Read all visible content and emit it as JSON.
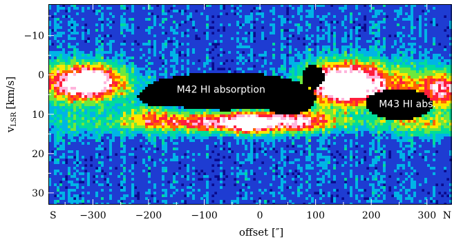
{
  "chart_data": {
    "type": "heatmap",
    "title": "",
    "xlabel": "offset [″]",
    "ylabel": "v",
    "ylabel_sub": "LSR",
    "ylabel_unit": "[km/s]",
    "xlim": [
      -380,
      345
    ],
    "ylim": [
      -18,
      33
    ],
    "y_inverted": true,
    "x_ticks": [
      -300,
      -200,
      -100,
      0,
      100,
      200,
      300
    ],
    "x_tick_labels": [
      "−300",
      "−200",
      "−100",
      "0",
      "100",
      "200",
      "300"
    ],
    "y_ticks": [
      -10,
      0,
      10,
      20,
      30
    ],
    "y_tick_labels": [
      "−10",
      "0",
      "10",
      "20",
      "30"
    ],
    "x_end_labels": {
      "left": "S",
      "right": "N"
    },
    "colormap": [
      "#0a0a8c",
      "#1e3cd2",
      "#00b4e6",
      "#00dc9a",
      "#6ee83c",
      "#ffe600",
      "#ff6400",
      "#ff1e3c",
      "#ffb4dc",
      "#ffffff"
    ],
    "background_color": "#0a0a8c",
    "emission_components": [
      {
        "x": -320,
        "v": 2,
        "sx": 55,
        "sv": 3.2,
        "amp": 0.9
      },
      {
        "x": -300,
        "v": 2,
        "sx": 18,
        "sv": 2.2,
        "amp": 0.4
      },
      {
        "x": -330,
        "v": 12,
        "sx": 60,
        "sv": 3.0,
        "amp": 0.12
      },
      {
        "x": -50,
        "v": 12,
        "sx": 120,
        "sv": 1.8,
        "amp": 0.75
      },
      {
        "x": -20,
        "v": 12.5,
        "sx": 20,
        "sv": 1.6,
        "amp": 0.35
      },
      {
        "x": -200,
        "v": 10,
        "sx": 25,
        "sv": 2.5,
        "amp": 0.25
      },
      {
        "x": 60,
        "v": 11.5,
        "sx": 50,
        "sv": 2.0,
        "amp": 0.3
      },
      {
        "x": 150,
        "v": 2,
        "sx": 45,
        "sv": 3.5,
        "amp": 0.95
      },
      {
        "x": 155,
        "v": 3.5,
        "sx": 15,
        "sv": 1.5,
        "amp": 0.45
      },
      {
        "x": 240,
        "v": 3,
        "sx": 90,
        "sv": 4,
        "amp": 0.4
      },
      {
        "x": 330,
        "v": 4,
        "sx": 25,
        "sv": 3,
        "amp": 0.5
      },
      {
        "x": 300,
        "v": 12.5,
        "sx": 60,
        "sv": 2,
        "amp": 0.35
      }
    ],
    "absorption_regions": [
      {
        "x": -60,
        "v": 4.2,
        "rx": 150,
        "rv": 4.8
      },
      {
        "x": 50,
        "v": 6.0,
        "rx": 50,
        "rv": 4.2
      },
      {
        "x": -180,
        "v": 5.5,
        "rx": 40,
        "rv": 2.5
      },
      {
        "x": 250,
        "v": 7.5,
        "rx": 60,
        "rv": 4.0
      },
      {
        "x": 95,
        "v": 0.5,
        "rx": 20,
        "rv": 3
      }
    ],
    "annotations": [
      {
        "text": "M42 HI absorption",
        "x": -70,
        "v": 4.5
      },
      {
        "text": "M43 HI abs.",
        "x": 265,
        "v": 8.2
      }
    ]
  }
}
